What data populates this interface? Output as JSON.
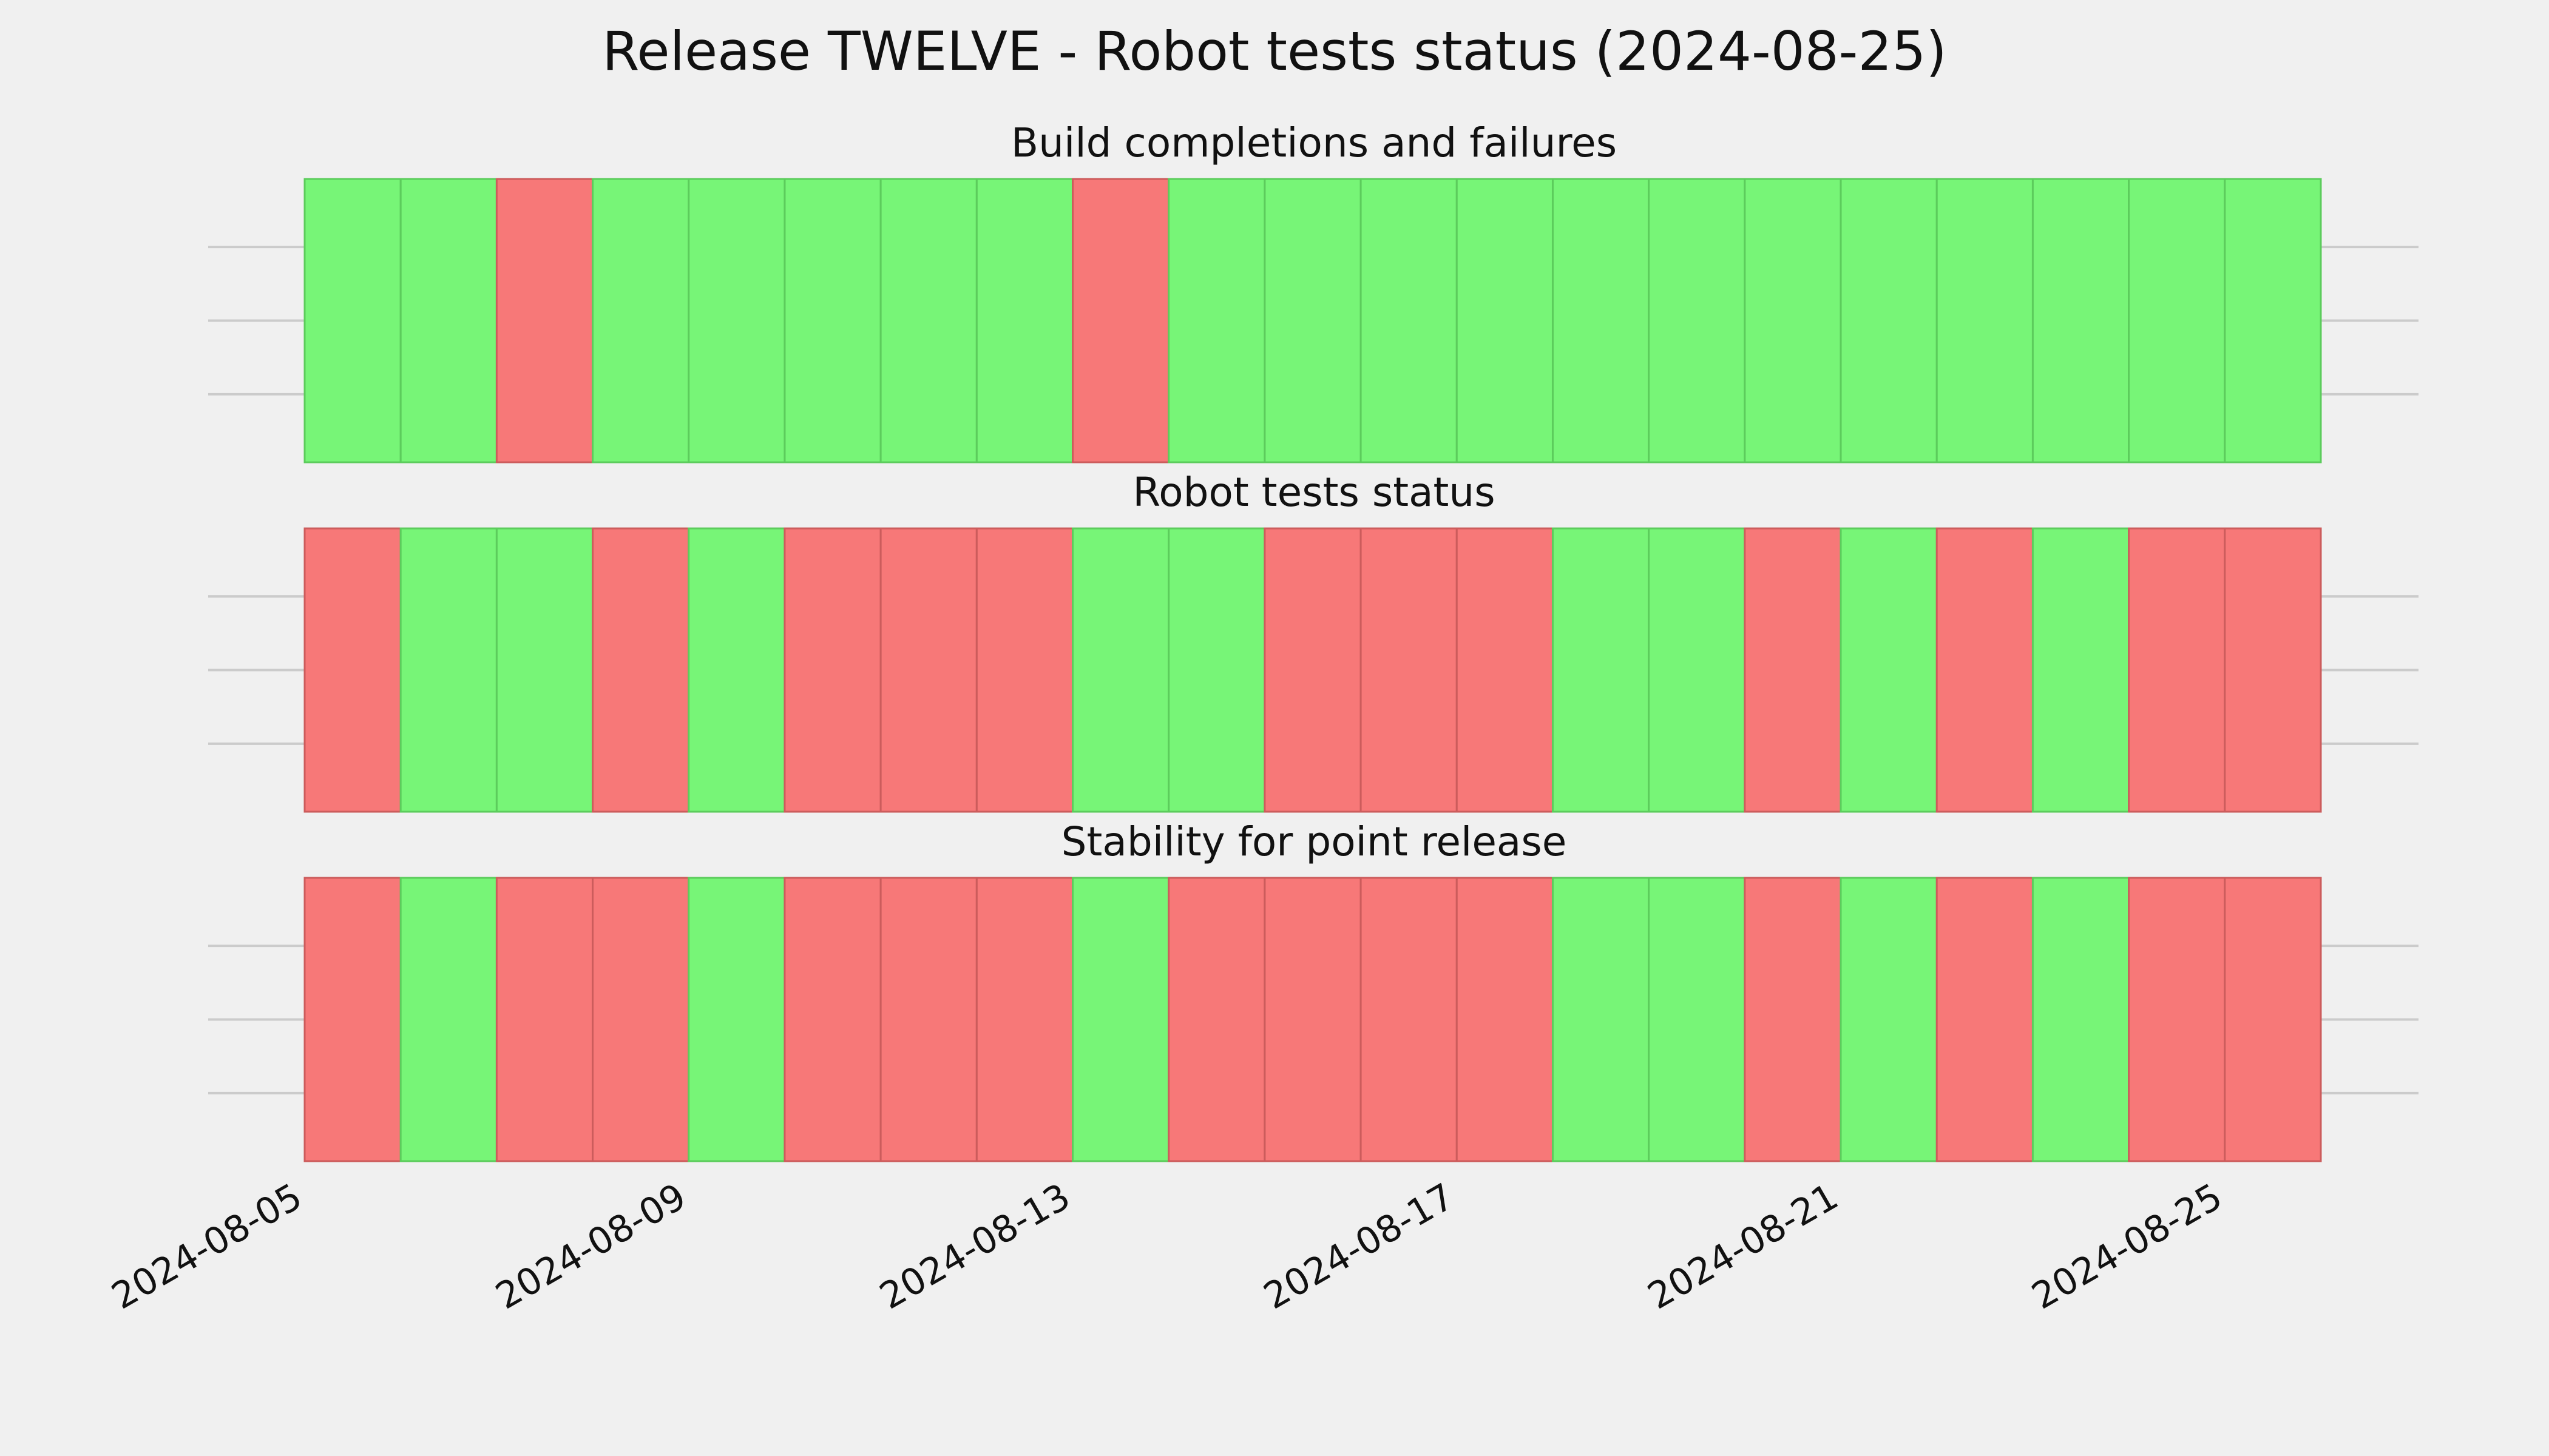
{
  "chart_data": {
    "type": "timeline",
    "title": "Release TWELVE - Robot tests status (2024-08-25)",
    "x_range": [
      "2024-08-05",
      "2024-08-26"
    ],
    "x_ticks": [
      "2024-08-05",
      "2024-08-09",
      "2024-08-13",
      "2024-08-17",
      "2024-08-21",
      "2024-08-25"
    ],
    "colors": {
      "pass": "#77f577",
      "fail": "#f77878",
      "pass_edge": "#5ccc5c",
      "fail_edge": "#cc5c5c"
    },
    "grid": true,
    "panels": [
      {
        "title": "Build completions and failures",
        "days": [
          {
            "date": "2024-08-05",
            "status": "pass"
          },
          {
            "date": "2024-08-06",
            "status": "pass"
          },
          {
            "date": "2024-08-07",
            "status": "fail"
          },
          {
            "date": "2024-08-08",
            "status": "pass"
          },
          {
            "date": "2024-08-09",
            "status": "pass"
          },
          {
            "date": "2024-08-10",
            "status": "pass"
          },
          {
            "date": "2024-08-11",
            "status": "pass"
          },
          {
            "date": "2024-08-12",
            "status": "pass"
          },
          {
            "date": "2024-08-13",
            "status": "fail"
          },
          {
            "date": "2024-08-14",
            "status": "pass"
          },
          {
            "date": "2024-08-15",
            "status": "pass"
          },
          {
            "date": "2024-08-16",
            "status": "pass"
          },
          {
            "date": "2024-08-17",
            "status": "pass"
          },
          {
            "date": "2024-08-18",
            "status": "pass"
          },
          {
            "date": "2024-08-19",
            "status": "pass"
          },
          {
            "date": "2024-08-20",
            "status": "pass"
          },
          {
            "date": "2024-08-21",
            "status": "pass"
          },
          {
            "date": "2024-08-22",
            "status": "pass"
          },
          {
            "date": "2024-08-23",
            "status": "pass"
          },
          {
            "date": "2024-08-24",
            "status": "pass"
          },
          {
            "date": "2024-08-25",
            "status": "pass"
          }
        ]
      },
      {
        "title": "Robot tests status",
        "days": [
          {
            "date": "2024-08-05",
            "status": "fail"
          },
          {
            "date": "2024-08-06",
            "status": "pass"
          },
          {
            "date": "2024-08-07",
            "status": "pass"
          },
          {
            "date": "2024-08-08",
            "status": "fail"
          },
          {
            "date": "2024-08-09",
            "status": "pass"
          },
          {
            "date": "2024-08-10",
            "status": "fail"
          },
          {
            "date": "2024-08-11",
            "status": "fail"
          },
          {
            "date": "2024-08-12",
            "status": "fail"
          },
          {
            "date": "2024-08-13",
            "status": "pass"
          },
          {
            "date": "2024-08-14",
            "status": "pass"
          },
          {
            "date": "2024-08-15",
            "status": "fail"
          },
          {
            "date": "2024-08-16",
            "status": "fail"
          },
          {
            "date": "2024-08-17",
            "status": "fail"
          },
          {
            "date": "2024-08-18",
            "status": "pass"
          },
          {
            "date": "2024-08-19",
            "status": "pass"
          },
          {
            "date": "2024-08-20",
            "status": "fail"
          },
          {
            "date": "2024-08-21",
            "status": "pass"
          },
          {
            "date": "2024-08-22",
            "status": "fail"
          },
          {
            "date": "2024-08-23",
            "status": "pass"
          },
          {
            "date": "2024-08-24",
            "status": "fail"
          },
          {
            "date": "2024-08-25",
            "status": "fail"
          }
        ]
      },
      {
        "title": "Stability for point release",
        "days": [
          {
            "date": "2024-08-05",
            "status": "fail"
          },
          {
            "date": "2024-08-06",
            "status": "pass"
          },
          {
            "date": "2024-08-07",
            "status": "fail"
          },
          {
            "date": "2024-08-08",
            "status": "fail"
          },
          {
            "date": "2024-08-09",
            "status": "pass"
          },
          {
            "date": "2024-08-10",
            "status": "fail"
          },
          {
            "date": "2024-08-11",
            "status": "fail"
          },
          {
            "date": "2024-08-12",
            "status": "fail"
          },
          {
            "date": "2024-08-13",
            "status": "pass"
          },
          {
            "date": "2024-08-14",
            "status": "fail"
          },
          {
            "date": "2024-08-15",
            "status": "fail"
          },
          {
            "date": "2024-08-16",
            "status": "fail"
          },
          {
            "date": "2024-08-17",
            "status": "fail"
          },
          {
            "date": "2024-08-18",
            "status": "pass"
          },
          {
            "date": "2024-08-19",
            "status": "pass"
          },
          {
            "date": "2024-08-20",
            "status": "fail"
          },
          {
            "date": "2024-08-21",
            "status": "pass"
          },
          {
            "date": "2024-08-22",
            "status": "fail"
          },
          {
            "date": "2024-08-23",
            "status": "pass"
          },
          {
            "date": "2024-08-24",
            "status": "fail"
          },
          {
            "date": "2024-08-25",
            "status": "fail"
          }
        ]
      }
    ]
  }
}
